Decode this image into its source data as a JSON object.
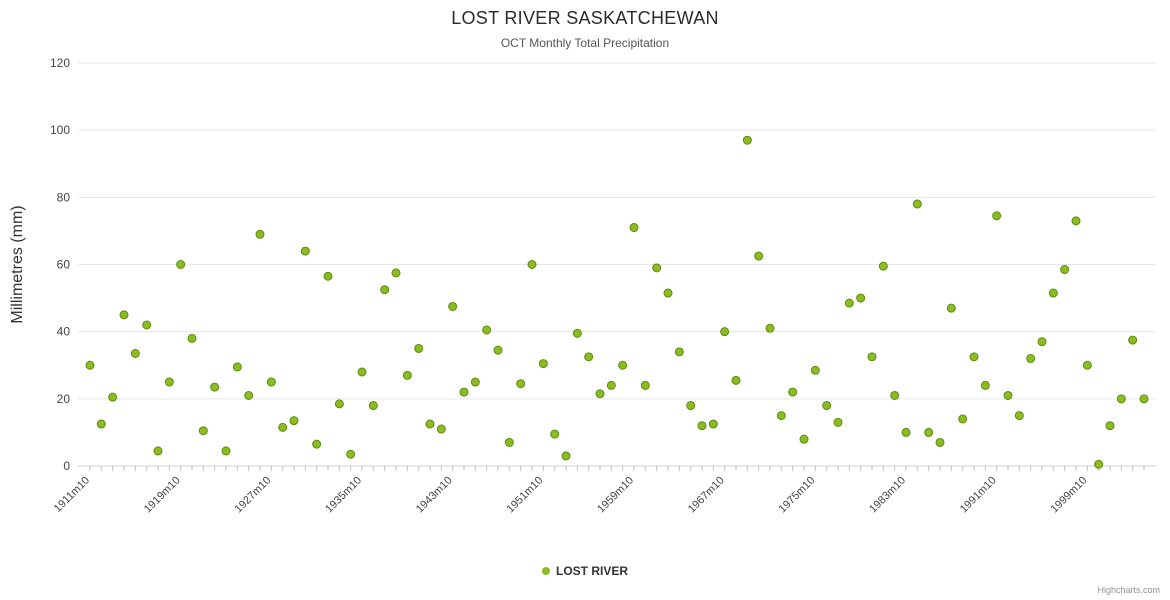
{
  "header": {
    "title": "LOST RIVER SASKATCHEWAN",
    "subtitle": "OCT Monthly Total Precipitation"
  },
  "legend": {
    "series_label": "LOST RIVER",
    "marker_color": "#8bbc21"
  },
  "credits": "Highcharts.com",
  "chart_data": {
    "type": "scatter",
    "title": "LOST RIVER SASKATCHEWAN",
    "subtitle": "OCT Monthly Total Precipitation",
    "xlabel": "",
    "ylabel": "Millimetres (mm)",
    "ylim": [
      0,
      120
    ],
    "yticks": [
      0,
      20,
      40,
      60,
      80,
      100,
      120
    ],
    "grid": "horizontal",
    "legend_position": "bottom-center",
    "x_label_suffix": "m10",
    "x_label_start": 1911,
    "x_label_end": 1999,
    "x_label_every": 8,
    "visible_x_tick_labels": [
      "1911m10",
      "1919m10",
      "1927m10",
      "1935m10",
      "1943m10",
      "1951m10",
      "1959m10",
      "1967m10",
      "1975m10",
      "1983m10",
      "1991m10",
      "1999m10"
    ],
    "series": [
      {
        "name": "LOST RIVER",
        "color": "#8bbc21",
        "border": "#5f8a10",
        "x": [
          1911,
          1912,
          1913,
          1914,
          1915,
          1916,
          1917,
          1918,
          1919,
          1920,
          1921,
          1922,
          1923,
          1924,
          1925,
          1926,
          1927,
          1928,
          1929,
          1930,
          1931,
          1932,
          1933,
          1934,
          1935,
          1936,
          1937,
          1938,
          1939,
          1940,
          1941,
          1942,
          1943,
          1944,
          1945,
          1946,
          1947,
          1948,
          1949,
          1950,
          1951,
          1952,
          1953,
          1954,
          1955,
          1956,
          1957,
          1958,
          1959,
          1960,
          1961,
          1962,
          1963,
          1964,
          1965,
          1966,
          1967,
          1968,
          1969,
          1970,
          1971,
          1972,
          1973,
          1974,
          1975,
          1976,
          1977,
          1978,
          1979,
          1980,
          1981,
          1982,
          1983,
          1984,
          1985,
          1986,
          1987,
          1988,
          1989,
          1990,
          1991,
          1992,
          1993,
          1994,
          1995,
          1996,
          1997,
          1998,
          1999,
          2000,
          2001,
          2002,
          2003,
          2004
        ],
        "y": [
          30,
          12.5,
          20.5,
          45,
          33.5,
          42,
          4.5,
          25,
          60,
          38,
          10.5,
          23.5,
          4.5,
          29.5,
          21,
          69,
          25,
          11.5,
          13.5,
          64,
          6.5,
          56.5,
          18.5,
          3.5,
          28,
          18,
          52.5,
          57.5,
          27,
          35,
          12.5,
          11,
          47.5,
          22,
          25,
          40.5,
          34.5,
          7,
          24.5,
          60,
          30.5,
          9.5,
          3,
          39.5,
          32.5,
          21.5,
          24,
          30,
          71,
          24,
          59,
          51.5,
          34,
          18,
          12,
          12.5,
          40,
          25.5,
          97,
          62.5,
          41,
          15,
          22,
          8,
          28.5,
          18,
          13,
          48.5,
          50,
          32.5,
          59.5,
          21,
          10,
          78,
          10,
          7,
          47,
          14,
          32.5,
          24,
          74.5,
          21,
          15,
          32,
          37,
          51.5,
          58.5,
          73,
          30,
          0.5,
          12,
          20,
          37.5,
          20
        ]
      }
    ]
  }
}
